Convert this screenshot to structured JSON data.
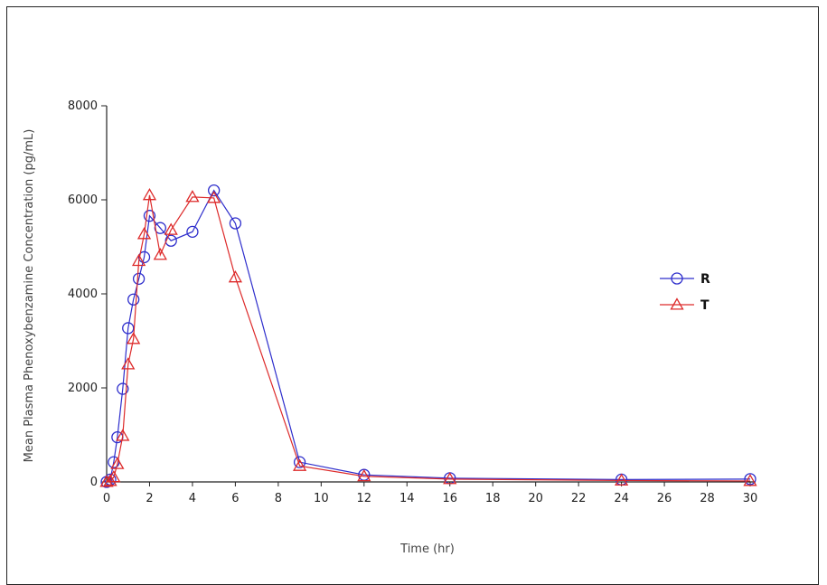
{
  "chart_data": {
    "type": "line",
    "title": "",
    "xlabel": "Time (hr)",
    "ylabel": "Mean Plasma Phenoxybenzamine Concentration (pg/mL)",
    "xlim": [
      0,
      30
    ],
    "ylim": [
      0,
      8000
    ],
    "x_ticks": [
      0,
      2,
      4,
      6,
      8,
      10,
      12,
      14,
      16,
      18,
      20,
      22,
      24,
      26,
      28,
      30
    ],
    "y_ticks": [
      0,
      2000,
      4000,
      6000,
      8000
    ],
    "grid": false,
    "legend_position": "right",
    "series": [
      {
        "name": "R",
        "color": "#2e2ecc",
        "marker": "circle",
        "x": [
          0,
          0.17,
          0.33,
          0.5,
          0.75,
          1,
          1.25,
          1.5,
          1.75,
          2,
          2.5,
          3,
          4,
          5,
          6,
          9,
          12,
          16,
          24,
          30
        ],
        "y": [
          0,
          50,
          420,
          950,
          1980,
          3270,
          3880,
          4320,
          4780,
          5660,
          5400,
          5130,
          5320,
          6200,
          5500,
          420,
          150,
          80,
          50,
          60
        ]
      },
      {
        "name": "T",
        "color": "#dd2a2a",
        "marker": "triangle",
        "x": [
          0,
          0.17,
          0.33,
          0.5,
          0.75,
          1,
          1.25,
          1.5,
          1.75,
          2,
          2.5,
          3,
          4,
          5,
          6,
          9,
          12,
          16,
          24,
          30
        ],
        "y": [
          0,
          20,
          100,
          380,
          980,
          2500,
          3040,
          4700,
          5270,
          6100,
          4830,
          5360,
          6060,
          6040,
          4350,
          340,
          120,
          60,
          30,
          20
        ]
      }
    ]
  }
}
